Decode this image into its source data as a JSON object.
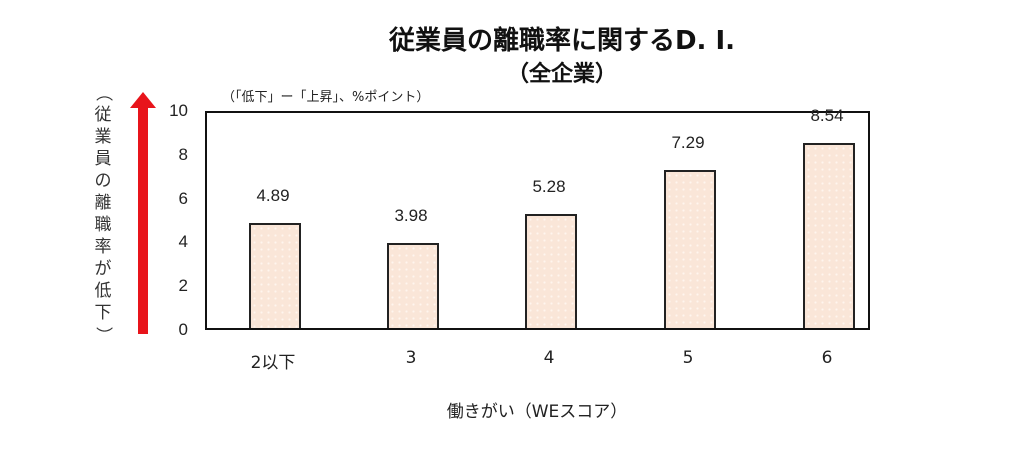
{
  "chart_data": {
    "type": "bar",
    "title": "従業員の離職率に関するD. I.",
    "subtitle": "（全企業）",
    "unit_note": "（「低下」ー「上昇」、%ポイント）",
    "ylabel": "（従業員の離職率が低下）",
    "xlabel": "働きがい（WEスコア）",
    "categories": [
      "2以下",
      "3",
      "4",
      "5",
      "6"
    ],
    "values": [
      4.89,
      3.98,
      5.28,
      7.29,
      8.54
    ],
    "value_labels": [
      "4.89",
      "3.98",
      "5.28",
      "7.29",
      "8.54"
    ],
    "ylim": [
      0,
      10
    ],
    "yticks": [
      "0",
      "2",
      "4",
      "6",
      "8",
      "10"
    ],
    "grid": false,
    "legend": null,
    "bar_color": "#fae6d8",
    "arrow_color": "#e8141b"
  }
}
